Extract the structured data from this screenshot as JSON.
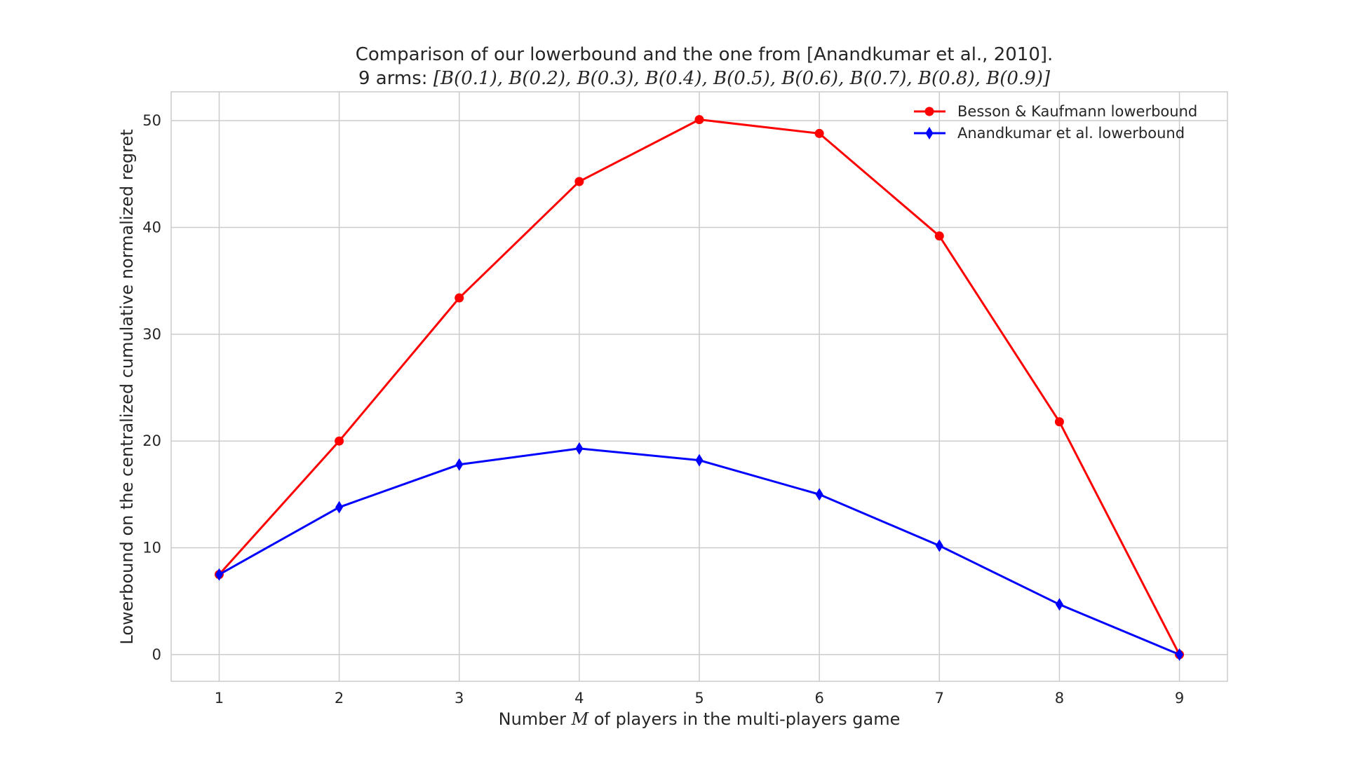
{
  "chart_data": {
    "type": "line",
    "title": "Comparison of our lowerbound and the one from [Anandkumar et al., 2010].",
    "subtitle_prefix": "9 arms: ",
    "subtitle_math": "[B(0.1), B(0.2), B(0.3), B(0.4), B(0.5), B(0.6), B(0.7), B(0.8), B(0.9)]",
    "xlabel_prefix": "Number ",
    "xlabel_math": "M",
    "xlabel_suffix": " of players in the multi-players game",
    "ylabel": "Lowerbound on the centralized cumulative normalized regret",
    "x": [
      1,
      2,
      3,
      4,
      5,
      6,
      7,
      8,
      9
    ],
    "xticks": [
      "1",
      "2",
      "3",
      "4",
      "5",
      "6",
      "7",
      "8",
      "9"
    ],
    "yticks": [
      "0",
      "10",
      "20",
      "30",
      "40",
      "50"
    ],
    "xlim": [
      0.6,
      9.4
    ],
    "ylim": [
      -2.5,
      52.7
    ],
    "grid": true,
    "legend_position": "top-right",
    "series": [
      {
        "name": "Besson & Kaufmann lowerbound",
        "color": "#ff0000",
        "marker": "circle",
        "values": [
          7.5,
          20.0,
          33.4,
          44.3,
          50.1,
          48.8,
          39.2,
          21.8,
          0.0
        ]
      },
      {
        "name": "Anandkumar et al. lowerbound",
        "color": "#0000ff",
        "marker": "diamond",
        "values": [
          7.5,
          13.8,
          17.8,
          19.3,
          18.2,
          15.0,
          10.2,
          4.7,
          0.0
        ]
      }
    ]
  }
}
